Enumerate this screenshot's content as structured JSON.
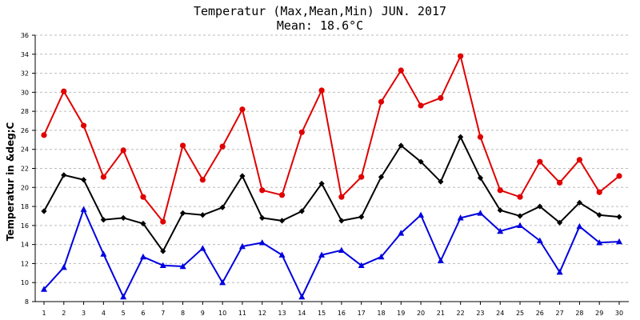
{
  "title": "Temperatur (Max,Mean,Min) JUN. 2017",
  "subtitle": "Mean: 18.6°C",
  "chart_data": {
    "type": "line",
    "title": "Temperatur (Max,Mean,Min) JUN. 2017",
    "subtitle": "Mean: 18.6°C",
    "xlabel": "",
    "ylabel": "Temperatur in &deg;C",
    "x": [
      1,
      2,
      3,
      4,
      5,
      6,
      7,
      8,
      9,
      10,
      11,
      12,
      13,
      14,
      15,
      16,
      17,
      18,
      19,
      20,
      21,
      22,
      23,
      24,
      25,
      26,
      27,
      28,
      29,
      30
    ],
    "ylim": [
      8,
      36
    ],
    "yticks": [
      8,
      10,
      12,
      14,
      16,
      18,
      20,
      22,
      24,
      26,
      28,
      30,
      32,
      34,
      36
    ],
    "grid": "horizontal dashed",
    "series": [
      {
        "color": "#e00000",
        "marker": "circle",
        "values": [
          25.5,
          30.1,
          26.5,
          21.1,
          23.9,
          19.0,
          16.4,
          24.4,
          20.8,
          24.3,
          28.2,
          19.7,
          19.2,
          25.8,
          30.2,
          19.0,
          21.1,
          29.0,
          32.3,
          28.6,
          29.4,
          33.8,
          25.3,
          19.7,
          19.0,
          22.7,
          20.5,
          22.9,
          19.5,
          21.2
        ]
      },
      {
        "color": "#000000",
        "marker": "diamond",
        "values": [
          17.5,
          21.3,
          20.8,
          16.6,
          16.8,
          16.2,
          13.3,
          17.3,
          17.1,
          17.9,
          21.2,
          16.8,
          16.5,
          17.5,
          20.4,
          16.5,
          16.9,
          21.1,
          24.4,
          22.7,
          20.6,
          25.3,
          21.0,
          17.6,
          17.0,
          18.0,
          16.3,
          18.4,
          17.1,
          16.9
        ]
      },
      {
        "color": "#0000e0",
        "marker": "triangle",
        "values": [
          9.3,
          11.6,
          17.7,
          13.0,
          8.5,
          12.7,
          11.8,
          11.7,
          13.6,
          10.0,
          13.8,
          14.2,
          12.9,
          8.5,
          12.9,
          13.4,
          11.8,
          12.7,
          15.2,
          17.1,
          12.3,
          16.8,
          17.3,
          15.4,
          16.0,
          14.4,
          11.1,
          15.9,
          14.2,
          14.3
        ]
      }
    ]
  }
}
